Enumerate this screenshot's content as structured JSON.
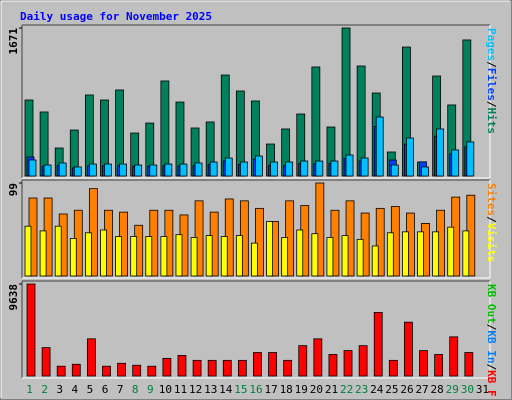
{
  "title": "Daily usage for November 2025",
  "legend_separator": "/",
  "chart_data": [
    {
      "type": "bar",
      "ylim": [
        0,
        1671
      ],
      "yticks": [
        1671
      ],
      "series": [
        {
          "name": "Hits",
          "color": "#00805c",
          "values": [
            858,
            723,
            316,
            519,
            915,
            858,
            971,
            485,
            598,
            1073,
            835,
            542,
            610,
            1140,
            960,
            847,
            361,
            531,
            700,
            1231,
            553,
            1671,
            1242,
            937,
            271,
            1456,
            158,
            1129,
            802,
            1536,
            null
          ]
        },
        {
          "name": "Files",
          "color": "#0040ff",
          "values": [
            215,
            110,
            120,
            90,
            115,
            115,
            120,
            110,
            110,
            115,
            115,
            120,
            130,
            170,
            130,
            190,
            120,
            120,
            140,
            140,
            140,
            200,
            170,
            560,
            180,
            360,
            160,
            450,
            250,
            330,
            null
          ]
        },
        {
          "name": "Pages",
          "color": "#00c0ff",
          "values": [
            181,
            124,
            147,
            102,
            135,
            135,
            135,
            124,
            124,
            135,
            135,
            147,
            158,
            203,
            158,
            226,
            158,
            158,
            169,
            169,
            169,
            237,
            203,
            666,
            124,
            429,
            102,
            531,
            294,
            384,
            null
          ]
        }
      ]
    },
    {
      "type": "bar",
      "ylim": [
        0,
        99
      ],
      "yticks": [
        99
      ],
      "series": [
        {
          "name": "Visits",
          "color": "#ffff00",
          "values": [
            53,
            48,
            53,
            40,
            46,
            49,
            42,
            42,
            42,
            42,
            44,
            41,
            43,
            42,
            43,
            35,
            58,
            41,
            49,
            45,
            41,
            43,
            39,
            32,
            46,
            47,
            47,
            47,
            52,
            48,
            null
          ]
        },
        {
          "name": "Sites",
          "color": "#ff8000",
          "values": [
            83,
            83,
            66,
            70,
            93,
            70,
            68,
            54,
            70,
            70,
            65,
            80,
            68,
            82,
            80,
            72,
            58,
            80,
            75,
            99,
            70,
            80,
            67,
            72,
            74,
            67,
            56,
            70,
            84,
            86,
            null
          ]
        }
      ]
    },
    {
      "type": "bar",
      "ylim": [
        0,
        9638
      ],
      "yticks": [
        9638
      ],
      "extra_legend": [
        {
          "name": "KB Out",
          "color": "#00c000"
        },
        {
          "name": "KB In",
          "color": "#0080ff"
        }
      ],
      "series": [
        {
          "name": "KB F",
          "color": "#ff0000",
          "values": [
            9638,
            2973,
            1025,
            1230,
            3895,
            1025,
            1333,
            1128,
            1025,
            1845,
            2153,
            1640,
            1640,
            1640,
            1640,
            2460,
            2460,
            1640,
            3178,
            3895,
            2255,
            2665,
            3178,
            6663,
            1640,
            5638,
            2665,
            2255,
            4100,
            2460,
            null
          ]
        }
      ],
      "categories": [
        "1",
        "2",
        "3",
        "4",
        "5",
        "6",
        "7",
        "8",
        "9",
        "10",
        "11",
        "12",
        "13",
        "14",
        "15",
        "16",
        "17",
        "18",
        "19",
        "20",
        "21",
        "22",
        "23",
        "24",
        "25",
        "26",
        "27",
        "28",
        "29",
        "30",
        "31"
      ],
      "category_colors": [
        "#008040",
        "#008040",
        "#000000",
        "#000000",
        "#000000",
        "#000000",
        "#000000",
        "#008040",
        "#008040",
        "#000000",
        "#000000",
        "#000000",
        "#000000",
        "#000000",
        "#008040",
        "#008040",
        "#000000",
        "#000000",
        "#000000",
        "#000000",
        "#000000",
        "#008040",
        "#008040",
        "#000000",
        "#000000",
        "#000000",
        "#000000",
        "#000000",
        "#008040",
        "#008040",
        "#000000"
      ]
    }
  ]
}
